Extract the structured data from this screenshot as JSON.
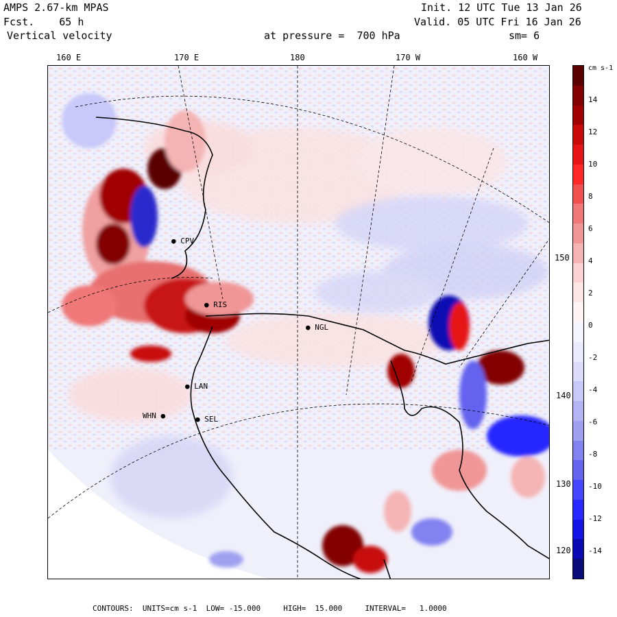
{
  "header": {
    "model": "AMPS 2.67-km MPAS",
    "forecast": "Fcst.    65 h",
    "field": "Vertical velocity",
    "init": "Init. 12 UTC Tue 13 Jan 26",
    "valid": "Valid. 05 UTC Fri 16 Jan 26",
    "pressure": "at pressure =  700 hPa",
    "smoothing": "sm= 6"
  },
  "map": {
    "longitude_labels": [
      "160 E",
      "170 E",
      "180",
      "170 W",
      "160 W"
    ],
    "latitude_labels": [
      "150 W",
      "140 W",
      "130 W",
      "120 W"
    ],
    "stations": [
      {
        "id": "CPV",
        "label": "CPV"
      },
      {
        "id": "RIS",
        "label": "RIS"
      },
      {
        "id": "NGL",
        "label": "NGL"
      },
      {
        "id": "LAN",
        "label": "LAN"
      },
      {
        "id": "WHN",
        "label": "WHN"
      },
      {
        "id": "SEL",
        "label": "SEL"
      }
    ]
  },
  "colorbar": {
    "units": "cm s-1",
    "ticks": [
      "14",
      "12",
      "10",
      "8",
      "6",
      "4",
      "2",
      "0",
      "-2",
      "-4",
      "-6",
      "-8",
      "-10",
      "-12",
      "-14"
    ],
    "colors": [
      "#0a0a7a",
      "#0a0ab4",
      "#1414e6",
      "#2828ff",
      "#4646ff",
      "#6464f0",
      "#8282f0",
      "#a0a0f0",
      "#b4b4f5",
      "#c8c8fa",
      "#dcdcfa",
      "#ebebff",
      "#f5f5ff",
      "#fff5f5",
      "#ffe6e6",
      "#fad2d2",
      "#f5b4b4",
      "#f09696",
      "#f07878",
      "#f05050",
      "#ff2828",
      "#e61414",
      "#c80a0a",
      "#a00000",
      "#820000",
      "#5a0000"
    ]
  },
  "footer": {
    "contours_label": "CONTOURS:",
    "units": "UNITS=cm s-1",
    "low": "LOW= -15.000",
    "high": "HIGH=  15.000",
    "interval": "INTERVAL=   1.0000"
  }
}
